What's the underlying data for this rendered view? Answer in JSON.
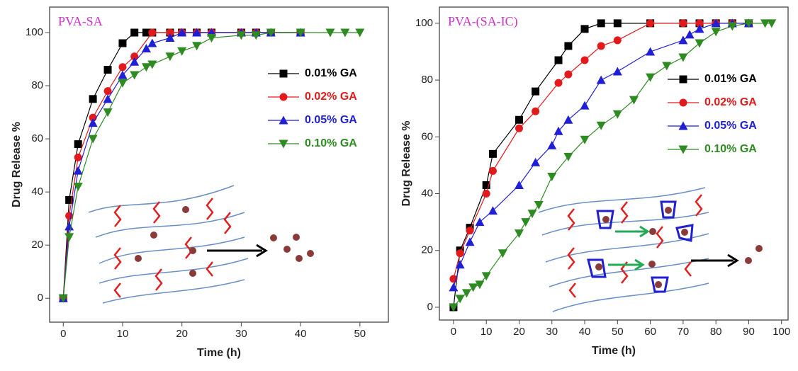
{
  "chart_data": [
    {
      "type": "line",
      "title": "PVA-SA",
      "x_label": "Time (h)",
      "y_label": "Drug Release %",
      "xlim": [
        -2.3,
        54.8
      ],
      "xticks": [
        0,
        10,
        20,
        30,
        40,
        50
      ],
      "ylim": [
        -9,
        109.6
      ],
      "yticks": [
        0,
        20,
        40,
        60,
        80,
        100
      ],
      "series": [
        {
          "name": "0.01% GA",
          "color": "#000000",
          "marker": "square",
          "x": [
            0,
            1,
            2.5,
            5,
            7.5,
            10,
            12,
            14,
            15,
            18,
            20,
            22.5,
            25,
            30,
            32.5,
            35,
            40
          ],
          "values": [
            0,
            37,
            58,
            75,
            86,
            96,
            100,
            100,
            100,
            100,
            100,
            100,
            100,
            100,
            100,
            100,
            100
          ]
        },
        {
          "name": "0.02% GA",
          "color": "#e31a1c",
          "marker": "circle",
          "x": [
            0,
            1,
            2.5,
            5,
            7.5,
            10,
            12,
            15,
            18,
            20,
            22.5,
            25,
            30,
            32.5,
            35,
            40
          ],
          "values": [
            0,
            31,
            53,
            68,
            78,
            87,
            91,
            100,
            100,
            100,
            100,
            100,
            100,
            100,
            100,
            100
          ]
        },
        {
          "name": "0.05% GA",
          "color": "#1f1fd6",
          "marker": "triangle-up",
          "x": [
            0,
            1,
            2.5,
            5,
            7.5,
            10,
            12,
            14,
            15,
            18,
            20,
            22.5,
            25,
            30,
            32.5,
            35,
            40
          ],
          "values": [
            0,
            27,
            48,
            66,
            75,
            84,
            89,
            94,
            96,
            98,
            100,
            100,
            100,
            100,
            100,
            100,
            100
          ]
        },
        {
          "name": "0.10% GA",
          "color": "#2e8b22",
          "marker": "triangle-down",
          "x": [
            0,
            1,
            2.5,
            5,
            7.5,
            10,
            12,
            14,
            15,
            18,
            20,
            22.5,
            25,
            30,
            32.5,
            35,
            40,
            45,
            47.5,
            50
          ],
          "values": [
            0,
            23,
            42,
            60,
            70,
            81,
            84,
            87,
            88,
            91,
            93,
            95,
            98,
            99,
            99,
            100,
            100,
            100,
            100,
            100
          ]
        }
      ]
    },
    {
      "type": "line",
      "title": "PVA-(SA-IC)",
      "x_label": "Time (h)",
      "y_label": "Drug Release %",
      "xlim": [
        -4.3,
        102
      ],
      "xticks": [
        0,
        10,
        20,
        30,
        40,
        50,
        60,
        70,
        80,
        90,
        100
      ],
      "ylim": [
        -4.5,
        105.7
      ],
      "yticks": [
        0,
        20,
        40,
        60,
        80,
        100
      ],
      "series": [
        {
          "name": "0.01% GA",
          "color": "#000000",
          "marker": "square",
          "x": [
            0,
            2,
            5,
            10,
            12,
            20,
            25,
            32,
            35,
            40,
            45,
            50,
            60,
            70,
            75,
            80,
            85,
            90
          ],
          "values": [
            0,
            20,
            28,
            43,
            54,
            66,
            76,
            87,
            92,
            98,
            100,
            100,
            100,
            100,
            100,
            100,
            100,
            100
          ]
        },
        {
          "name": "0.02% GA",
          "color": "#e31a1c",
          "marker": "circle",
          "x": [
            0,
            2,
            5,
            10,
            12,
            20,
            25,
            32,
            35,
            40,
            45,
            50,
            60,
            70,
            75,
            80,
            85,
            90
          ],
          "values": [
            10,
            19,
            27,
            40,
            48,
            63,
            69,
            79,
            82,
            87,
            92,
            94,
            100,
            100,
            100,
            100,
            100,
            100
          ]
        },
        {
          "name": "0.05% GA",
          "color": "#1f1fd6",
          "marker": "triangle-up",
          "x": [
            0,
            2,
            5,
            8,
            12,
            20,
            25,
            30,
            32,
            35,
            40,
            45,
            50,
            60,
            70,
            72,
            75,
            80,
            85,
            90
          ],
          "values": [
            7,
            15,
            23,
            30,
            34,
            43,
            51,
            57,
            62,
            66,
            71,
            80,
            83,
            90,
            94,
            96,
            98,
            100,
            100,
            100
          ]
        },
        {
          "name": "0.10% GA",
          "color": "#2e8b22",
          "marker": "triangle-down",
          "x": [
            0,
            2,
            4,
            6,
            8,
            10,
            15,
            20,
            22,
            24,
            26,
            30,
            35,
            40,
            45,
            50,
            55,
            60,
            65,
            70,
            75,
            80,
            85,
            90,
            95,
            97
          ],
          "values": [
            0,
            3,
            5,
            7,
            8,
            11,
            19,
            26,
            30,
            33,
            36,
            46,
            53,
            59,
            64,
            68,
            73,
            81,
            85,
            88,
            93,
            97,
            99,
            100,
            100,
            100
          ]
        }
      ]
    }
  ]
}
